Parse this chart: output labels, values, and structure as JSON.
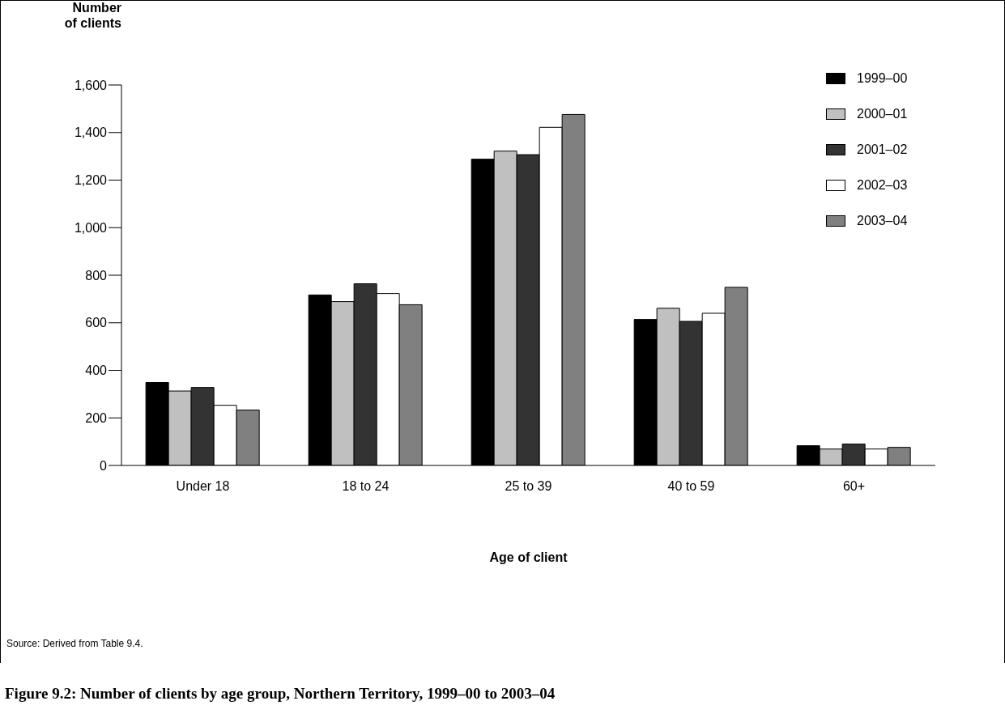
{
  "chart_data": {
    "type": "bar",
    "title": "Figure 9.2: Number of clients by age group, Northern Territory, 1999–00 to 2003–04",
    "xlabel": "Age of client",
    "ylabel": "Number of clients",
    "annotations": [
      "Source: Derived from Table 9.4."
    ],
    "categories": [
      "Under 18",
      "18 to 24",
      "25 to 39",
      "40 to 59",
      "60+"
    ],
    "series": [
      {
        "name": "1999–00",
        "color": "#000000",
        "values": [
          349,
          717,
          1288,
          614,
          83
        ]
      },
      {
        "name": "2000–01",
        "color": "#c0c0c0",
        "values": [
          313,
          689,
          1322,
          661,
          69
        ]
      },
      {
        "name": "2001–02",
        "color": "#333333",
        "values": [
          328,
          764,
          1307,
          606,
          90
        ]
      },
      {
        "name": "2002–03",
        "color": "#ffffff",
        "values": [
          253,
          723,
          1422,
          640,
          69
        ]
      },
      {
        "name": "2003–04",
        "color": "#808080",
        "values": [
          233,
          676,
          1476,
          749,
          76
        ]
      }
    ],
    "ylim": [
      0,
      1600
    ],
    "yticks": [
      0,
      200,
      400,
      600,
      800,
      {
        "value": 1000,
        "label": "1,000"
      },
      {
        "value": 1200,
        "label": "1,200"
      },
      {
        "value": 1400,
        "label": "1,400"
      },
      {
        "value": 1600,
        "label": "1,600"
      }
    ],
    "grid": false,
    "legend": "top right"
  }
}
